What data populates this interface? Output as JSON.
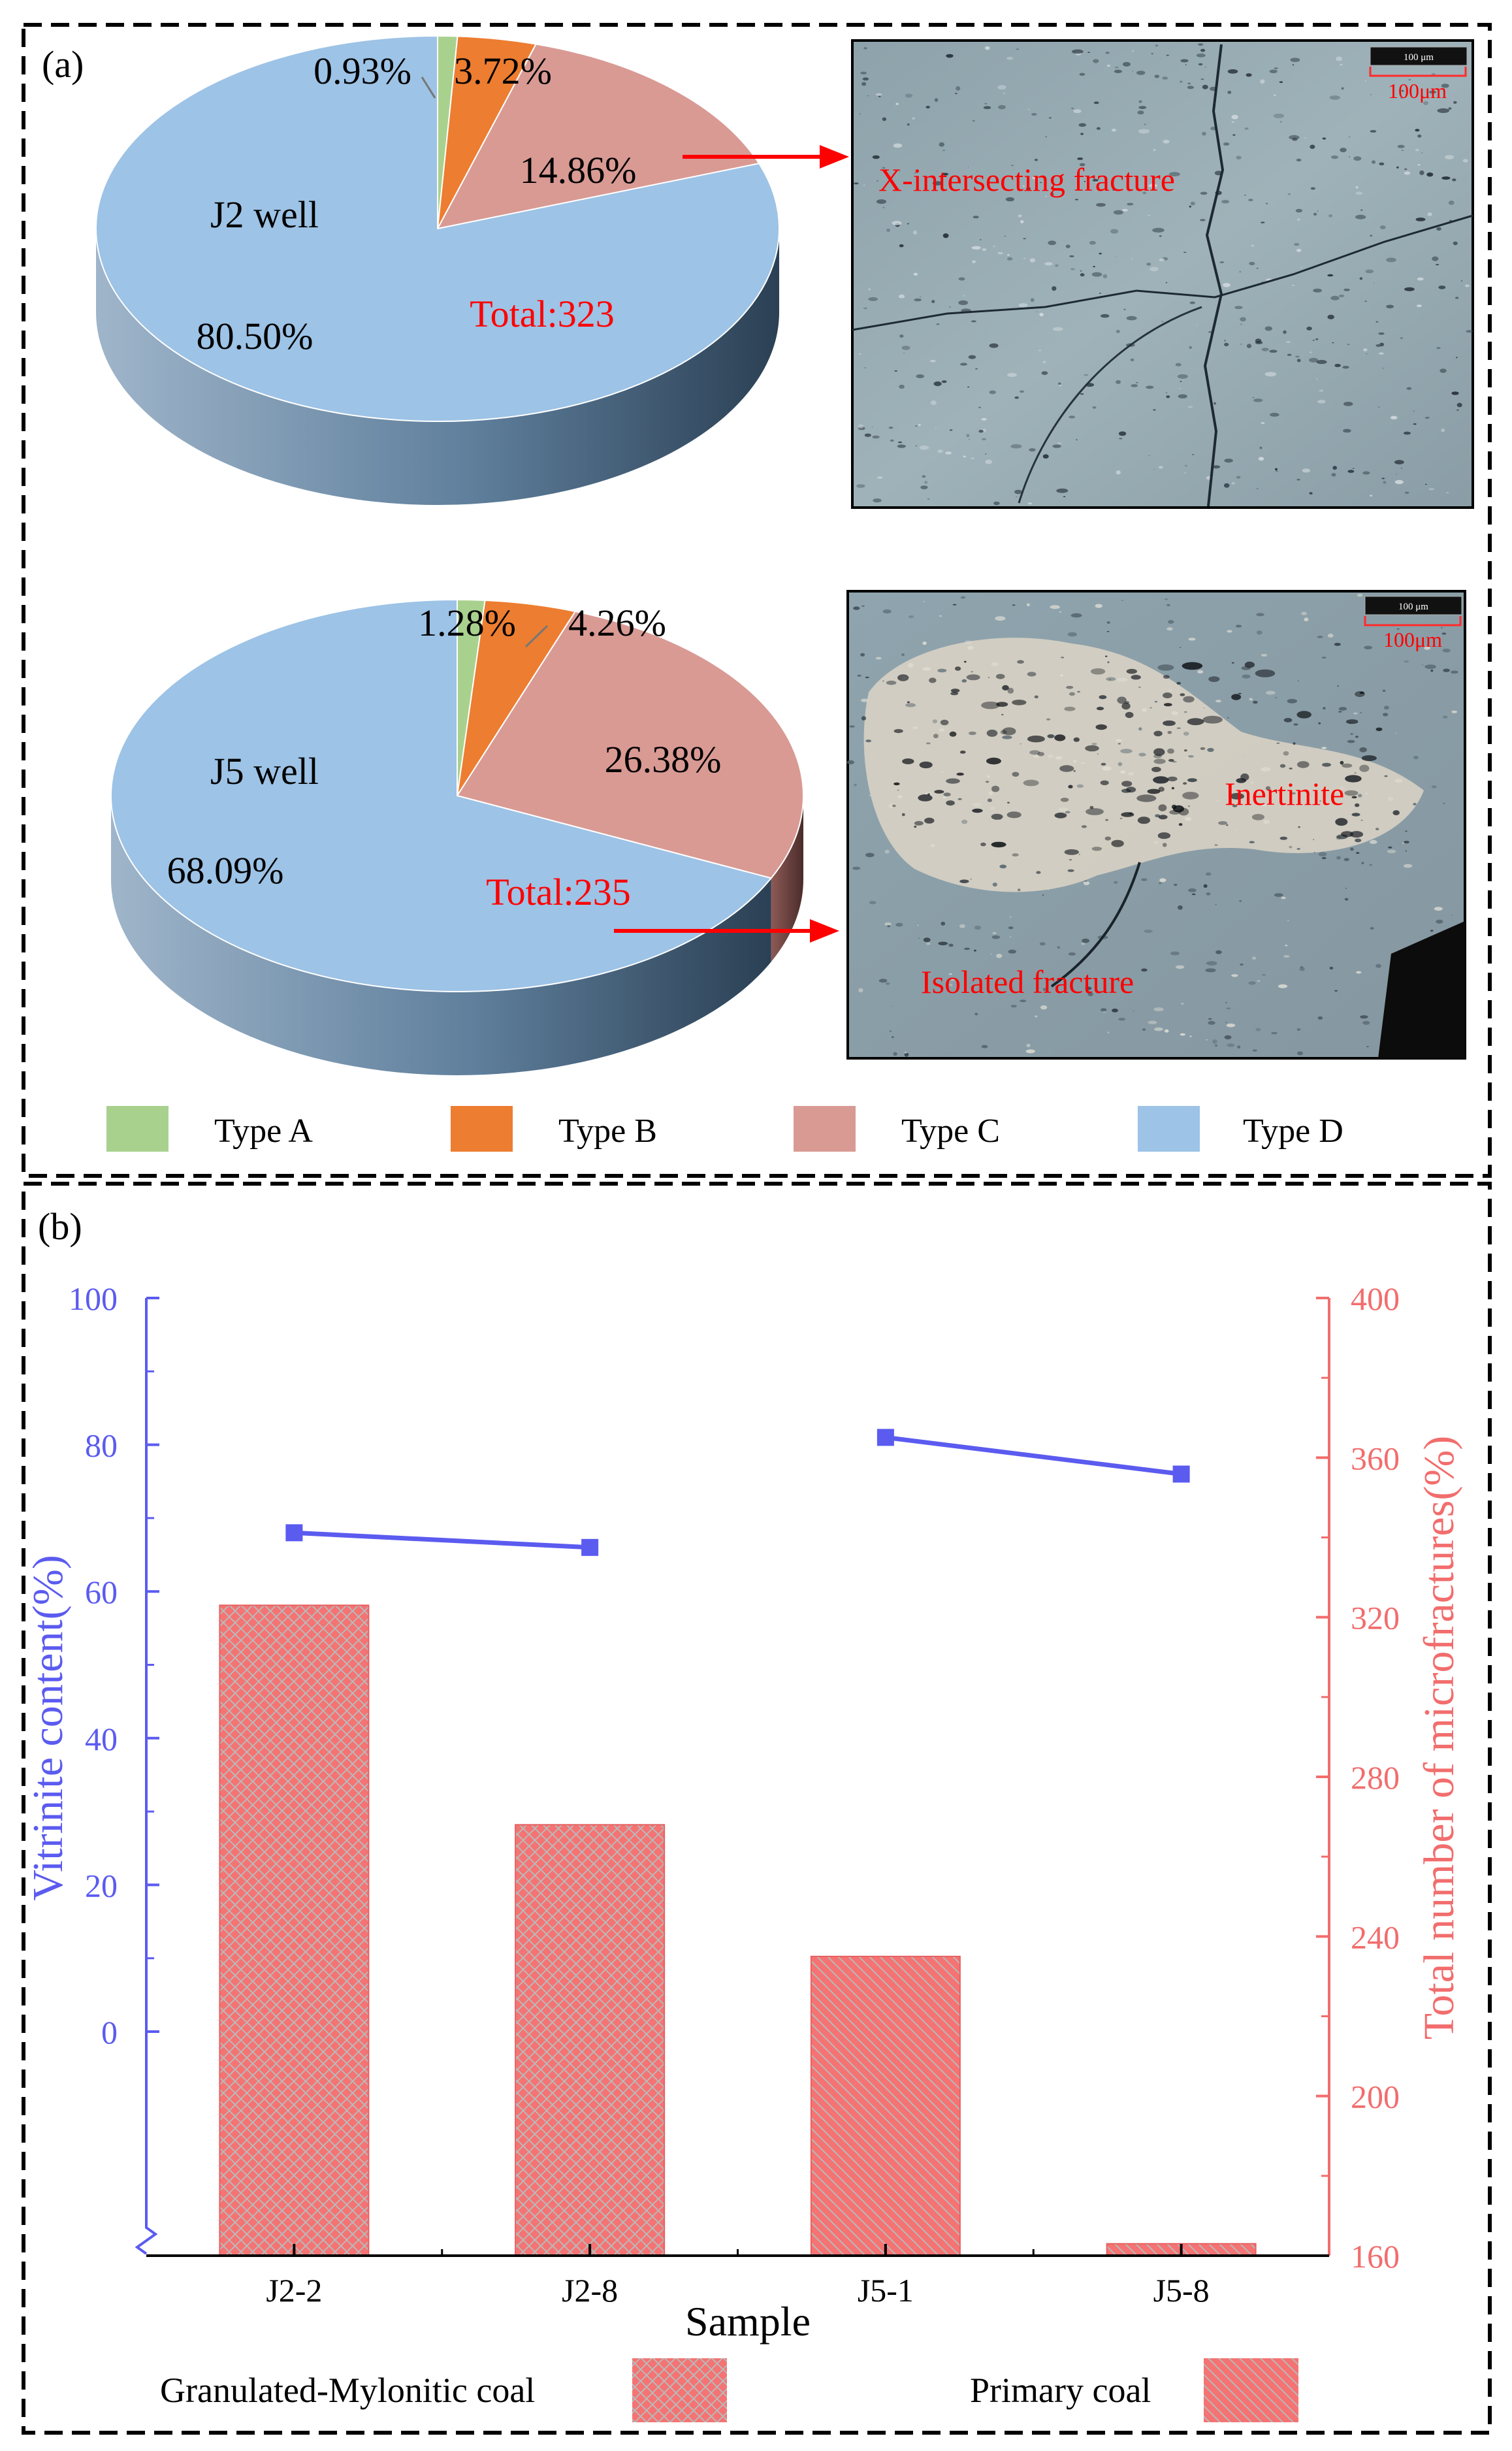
{
  "panel_a": {
    "label": "(a)",
    "pies": [
      {
        "well": "J2 well",
        "total_label": "Total:323",
        "slices": [
          {
            "type": "Type A",
            "percent": 0.93,
            "label": "0.93%"
          },
          {
            "type": "Type B",
            "percent": 3.72,
            "label": "3.72%"
          },
          {
            "type": "Type C",
            "percent": 14.86,
            "label": "14.86%"
          },
          {
            "type": "Type D",
            "percent": 80.5,
            "label": "80.50%"
          }
        ]
      },
      {
        "well": "J5 well",
        "total_label": "Total:235",
        "slices": [
          {
            "type": "Type A",
            "percent": 1.28,
            "label": "1.28%"
          },
          {
            "type": "Type B",
            "percent": 4.26,
            "label": "4.26%"
          },
          {
            "type": "Type C",
            "percent": 26.38,
            "label": "26.38%"
          },
          {
            "type": "Type D",
            "percent": 68.09,
            "label": "68.09%"
          }
        ]
      }
    ],
    "micrographs": [
      {
        "annotation": "X-intersecting  fracture",
        "scale_bar_small": "100 μm",
        "scale_bar": "100μm"
      },
      {
        "annotation": "Isolated fracture",
        "annotation_2": "Inertinite",
        "scale_bar_small": "100 μm",
        "scale_bar": "100μm"
      }
    ],
    "legend": [
      {
        "label": "Type A",
        "color": "#a9d18e"
      },
      {
        "label": "Type B",
        "color": "#ed7d31"
      },
      {
        "label": "Type C",
        "color": "#d99a94"
      },
      {
        "label": "Type D",
        "color": "#9dc3e6"
      }
    ]
  },
  "panel_b": {
    "label": "(b)",
    "legend": [
      {
        "label": "Granulated-Mylonitic coal",
        "pattern": "crosshatch"
      },
      {
        "label": "Primary coal",
        "pattern": "diagonal"
      }
    ]
  },
  "chart_data": [
    {
      "type": "pie",
      "title": "J2 well",
      "categories": [
        "Type A",
        "Type B",
        "Type C",
        "Type D"
      ],
      "values": [
        0.93,
        3.72,
        14.86,
        80.5
      ],
      "total": 323
    },
    {
      "type": "pie",
      "title": "J5 well",
      "categories": [
        "Type A",
        "Type B",
        "Type C",
        "Type D"
      ],
      "values": [
        1.28,
        4.26,
        26.38,
        68.09
      ],
      "total": 235
    },
    {
      "type": "bar",
      "categories": [
        "J2-2",
        "J2-8",
        "J5-1",
        "J5-8"
      ],
      "xlabel": "Sample",
      "series": [
        {
          "name": "Total number of microfractures(%)",
          "axis": "right",
          "kind": "bar",
          "values": [
            323,
            268,
            235,
            163
          ],
          "patterns": [
            "crosshatch",
            "crosshatch",
            "diagonal",
            "diagonal"
          ]
        },
        {
          "name": "Vitrinite content(%)",
          "axis": "left",
          "kind": "line",
          "segments": [
            {
              "categories": [
                "J2-2",
                "J2-8"
              ],
              "values": [
                68,
                66
              ]
            },
            {
              "categories": [
                "J5-1",
                "J5-8"
              ],
              "values": [
                81,
                76
              ]
            }
          ]
        }
      ],
      "ylabel_left": "Vitrinite content(%)",
      "ylabel_right": "Total number of microfractures(%)",
      "ylim_left": [
        0,
        100
      ],
      "ylim_right": [
        160,
        400
      ],
      "yticks_left": [
        0,
        20,
        40,
        60,
        80,
        100
      ],
      "yticks_right": [
        160,
        200,
        240,
        280,
        320,
        360,
        400
      ],
      "left_axis_color": "#5b5bf0",
      "right_axis_color": "#f26d6d",
      "bar_color": "#f57373",
      "grid": false,
      "legend_position": "bottom"
    }
  ]
}
